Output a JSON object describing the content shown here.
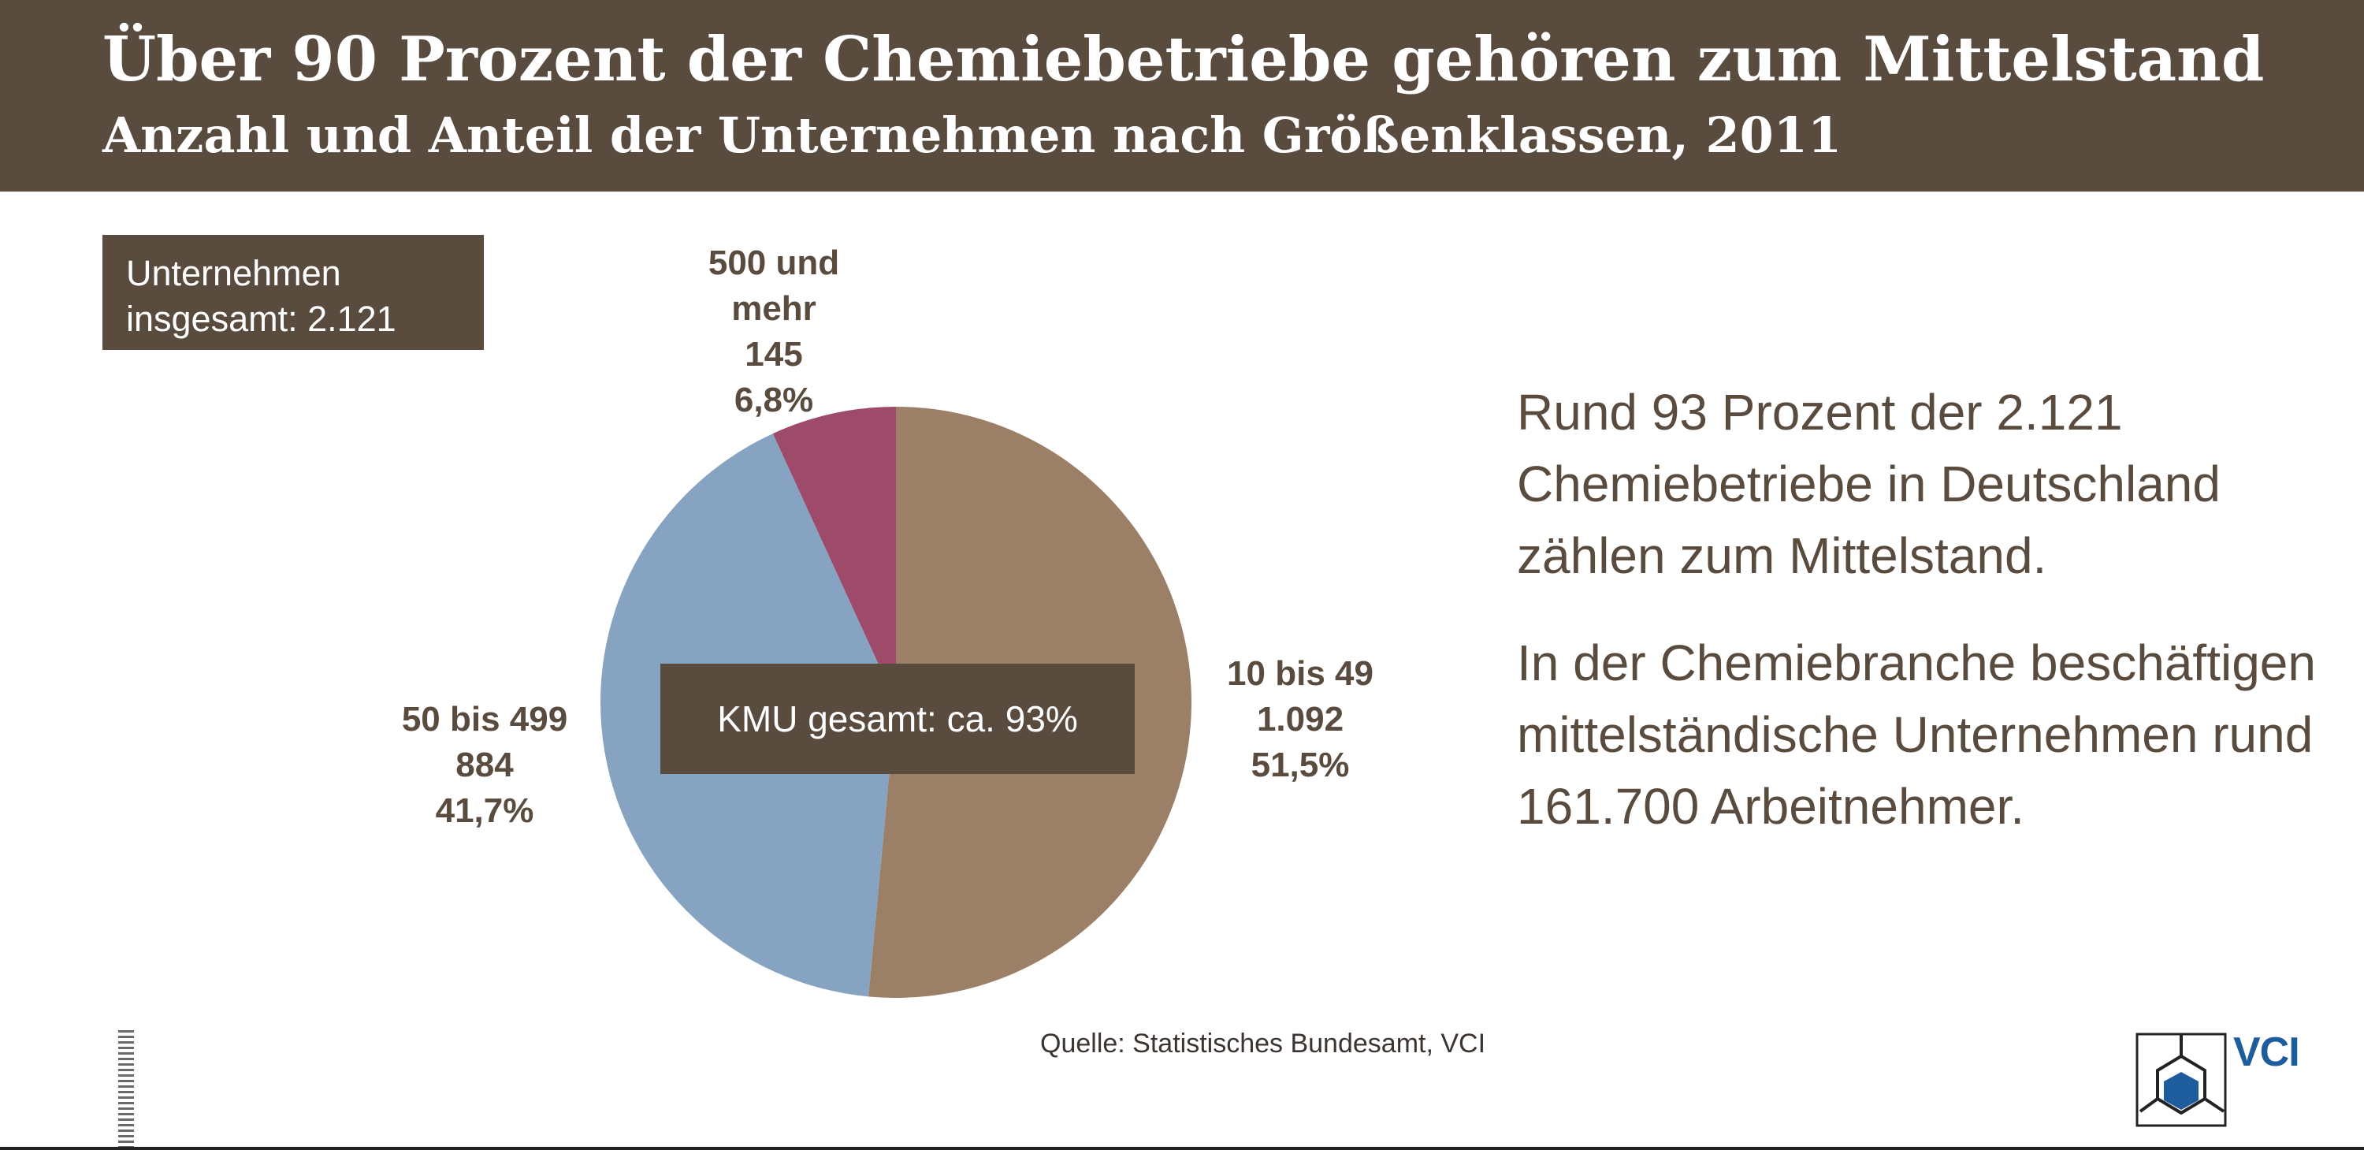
{
  "header": {
    "title": "Über 90 Prozent der Chemiebetriebe gehören zum Mittelstand",
    "subtitle": "Anzahl und Anteil der Unternehmen nach Größenklassen, 2011"
  },
  "total_box": {
    "line1": "Unternehmen",
    "line2": "insgesamt: 2.121"
  },
  "kmu_box": {
    "text": "KMU gesamt: ca. 93%"
  },
  "side_text": {
    "para1": "Rund 93 Prozent der 2.121 Chemiebetriebe in Deutschland zählen zum Mittelstand.",
    "para2": "In der Chemiebranche beschäftigen mittelständische Unternehmen rund 161.700 Arbeitnehmer."
  },
  "source": "Quelle: Statistisches Bundesamt, VCI",
  "logo": {
    "text": "VCI"
  },
  "chart_data": {
    "type": "pie",
    "title": "Über 90 Prozent der Chemiebetriebe gehören zum Mittelstand",
    "subtitle": "Anzahl und Anteil der Unternehmen nach Größenklassen, 2011",
    "total": 2121,
    "slices": [
      {
        "name": "10 bis 49",
        "count_label": "1.092",
        "percent_label": "51,5%",
        "value": 1092,
        "percent": 51.5,
        "color": "#9b7f66"
      },
      {
        "name": "50 bis 499",
        "count_label": "884",
        "percent_label": "41,7%",
        "value": 884,
        "percent": 41.7,
        "color": "#87a3c2"
      },
      {
        "name_line1": "500 und",
        "name_line2": "mehr",
        "name": "500 und mehr",
        "count_label": "145",
        "percent_label": "6,8%",
        "value": 145,
        "percent": 6.8,
        "color": "#9e4a6b"
      }
    ]
  }
}
